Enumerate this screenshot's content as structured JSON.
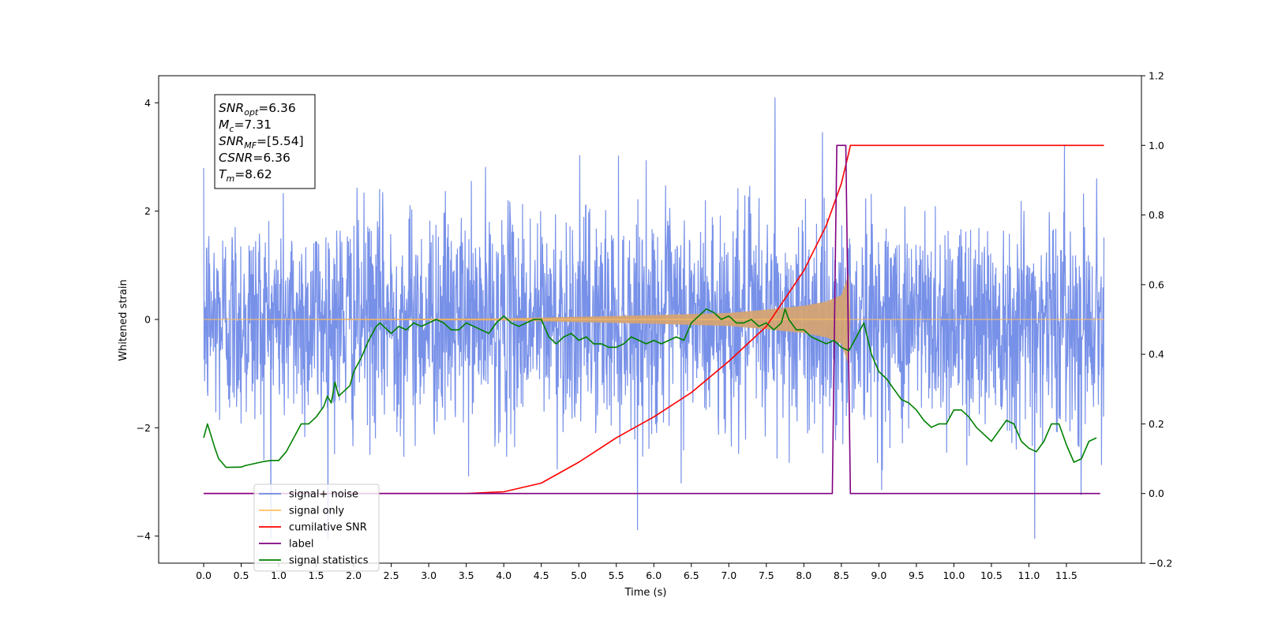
{
  "chart_data": {
    "type": "line",
    "xlabel": "Time (s)",
    "ylabel": "Whitened strain",
    "xlim": [
      -0.6,
      12.5
    ],
    "ylim": [
      -4.5,
      4.5
    ],
    "y2lim": [
      -0.2,
      1.2
    ],
    "x_ticks": [
      "0.0",
      "0.5",
      "1.0",
      "1.5",
      "2.0",
      "2.5",
      "3.0",
      "3.5",
      "4.0",
      "4.5",
      "5.0",
      "5.5",
      "6.0",
      "6.5",
      "7.0",
      "7.5",
      "8.0",
      "8.5",
      "9.0",
      "9.5",
      "10.0",
      "10.5",
      "11.0",
      "11.5"
    ],
    "y_ticks": [
      "4",
      "2",
      "0",
      "−2",
      "−4"
    ],
    "y2_ticks": [
      "1.2",
      "1.0",
      "0.8",
      "0.6",
      "0.4",
      "0.2",
      "0.0",
      "−0.2"
    ],
    "annotation": [
      {
        "sym": "SNR",
        "sub": "opt",
        "value": "=6.36"
      },
      {
        "sym": "M",
        "sub": "c",
        "value": "=7.31"
      },
      {
        "sym": "SNR",
        "sub": "MF",
        "value": "=[5.54]"
      },
      {
        "sym": "CSNR",
        "sub": "",
        "value": "=6.36"
      },
      {
        "sym": "T",
        "sub": "m",
        "value": "=8.62"
      }
    ],
    "legend": {
      "placement": "lower-left",
      "entries": [
        {
          "label": "signal+ noise",
          "color": "#6c88e6"
        },
        {
          "label": "signal only",
          "color": "#ffc060"
        },
        {
          "label": "cumilative SNR",
          "color": "#ff0000"
        },
        {
          "label": "label",
          "color": "#800080"
        },
        {
          "label": "signal statistics",
          "color": "#008000"
        }
      ]
    },
    "series": [
      {
        "name": "signal+ noise",
        "axis": "left",
        "color": "#6c88e6",
        "noise": {
          "x_start": 0.0,
          "x_end": 12.0,
          "bulk_amplitude": 2.4,
          "peak": 4.1,
          "trough": -4.05
        }
      },
      {
        "name": "signal only",
        "axis": "left",
        "color": "#d4a373",
        "chirp_envelope": {
          "x": [
            0.0,
            4.0,
            5.0,
            6.0,
            7.0,
            7.5,
            8.0,
            8.3,
            8.5,
            8.6,
            8.62,
            12.0
          ],
          "y": [
            0.0,
            0.02,
            0.05,
            0.08,
            0.12,
            0.18,
            0.25,
            0.33,
            0.45,
            0.85,
            0.0,
            0.0
          ]
        }
      },
      {
        "name": "cumilative SNR",
        "axis": "right",
        "color": "#ff0000",
        "x": [
          0.0,
          3.5,
          4.0,
          4.5,
          5.0,
          5.5,
          6.0,
          6.5,
          7.0,
          7.5,
          8.0,
          8.3,
          8.5,
          8.6,
          8.62,
          12.0
        ],
        "y": [
          0.0,
          0.0,
          0.005,
          0.03,
          0.09,
          0.16,
          0.22,
          0.29,
          0.38,
          0.48,
          0.64,
          0.77,
          0.89,
          0.98,
          1.0,
          1.0
        ]
      },
      {
        "name": "label",
        "axis": "right",
        "color": "#800080",
        "x": [
          0.0,
          8.38,
          8.44,
          8.56,
          8.62,
          11.95
        ],
        "y": [
          0.0,
          0.0,
          1.0,
          1.0,
          0.0,
          0.0
        ]
      },
      {
        "name": "signal statistics",
        "axis": "right",
        "color": "#008000",
        "x": [
          0.0,
          0.05,
          0.15,
          0.2,
          0.3,
          0.5,
          0.55,
          0.8,
          0.9,
          1.0,
          1.1,
          1.2,
          1.3,
          1.4,
          1.5,
          1.6,
          1.65,
          1.7,
          1.75,
          1.8,
          1.9,
          1.95,
          2.0,
          2.1,
          2.2,
          2.3,
          2.35,
          2.4,
          2.5,
          2.6,
          2.7,
          2.8,
          2.9,
          3.0,
          3.1,
          3.2,
          3.3,
          3.4,
          3.5,
          3.6,
          3.7,
          3.8,
          3.9,
          4.0,
          4.1,
          4.2,
          4.3,
          4.4,
          4.5,
          4.6,
          4.7,
          4.8,
          4.9,
          5.0,
          5.1,
          5.2,
          5.3,
          5.4,
          5.5,
          5.6,
          5.7,
          5.8,
          5.9,
          6.0,
          6.1,
          6.2,
          6.3,
          6.4,
          6.5,
          6.6,
          6.7,
          6.8,
          6.9,
          7.0,
          7.1,
          7.2,
          7.3,
          7.4,
          7.5,
          7.6,
          7.7,
          7.75,
          7.8,
          7.9,
          8.0,
          8.1,
          8.2,
          8.3,
          8.4,
          8.5,
          8.6,
          8.7,
          8.8,
          8.9,
          9.0,
          9.1,
          9.2,
          9.3,
          9.4,
          9.5,
          9.6,
          9.7,
          9.8,
          9.9,
          10.0,
          10.1,
          10.2,
          10.3,
          10.4,
          10.5,
          10.6,
          10.7,
          10.8,
          10.9,
          11.0,
          11.1,
          11.2,
          11.3,
          11.4,
          11.5,
          11.6,
          11.7,
          11.8,
          11.9
        ],
        "y": [
          0.16,
          0.2,
          0.13,
          0.1,
          0.075,
          0.076,
          0.08,
          0.092,
          0.095,
          0.095,
          0.12,
          0.16,
          0.2,
          0.2,
          0.22,
          0.25,
          0.28,
          0.26,
          0.32,
          0.28,
          0.3,
          0.31,
          0.35,
          0.39,
          0.44,
          0.48,
          0.49,
          0.48,
          0.46,
          0.48,
          0.47,
          0.49,
          0.48,
          0.49,
          0.5,
          0.49,
          0.47,
          0.47,
          0.49,
          0.48,
          0.47,
          0.46,
          0.49,
          0.51,
          0.49,
          0.48,
          0.49,
          0.5,
          0.5,
          0.45,
          0.43,
          0.45,
          0.46,
          0.44,
          0.45,
          0.43,
          0.43,
          0.42,
          0.42,
          0.43,
          0.45,
          0.44,
          0.43,
          0.44,
          0.43,
          0.44,
          0.45,
          0.44,
          0.49,
          0.51,
          0.53,
          0.52,
          0.5,
          0.51,
          0.49,
          0.49,
          0.5,
          0.48,
          0.49,
          0.47,
          0.49,
          0.53,
          0.5,
          0.47,
          0.47,
          0.45,
          0.44,
          0.43,
          0.44,
          0.42,
          0.41,
          0.45,
          0.49,
          0.4,
          0.35,
          0.33,
          0.3,
          0.27,
          0.26,
          0.24,
          0.21,
          0.19,
          0.2,
          0.2,
          0.24,
          0.24,
          0.22,
          0.19,
          0.17,
          0.15,
          0.18,
          0.21,
          0.2,
          0.15,
          0.13,
          0.12,
          0.15,
          0.2,
          0.2,
          0.14,
          0.09,
          0.1,
          0.15,
          0.16
        ]
      }
    ]
  }
}
